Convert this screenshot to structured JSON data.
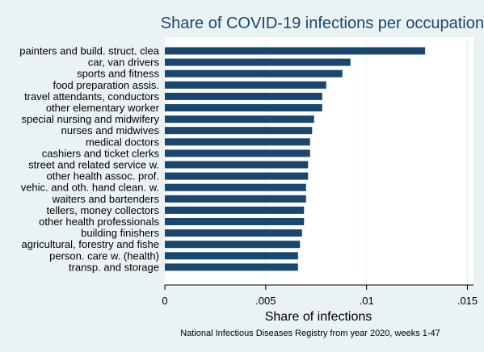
{
  "chart_data": {
    "type": "bar",
    "orientation": "horizontal",
    "title": "Share of COVID-19 infections per occupation",
    "xlabel": "Share of infections",
    "note": "National Infectious Diseases Registry from year 2020, weeks 1-47",
    "xlim": [
      0,
      0.0153
    ],
    "xticks": [
      0,
      0.005,
      0.01,
      0.015
    ],
    "xtick_labels": [
      "0",
      ".005",
      ".01",
      ".015"
    ],
    "grid": true,
    "bar_color": "#1a476f",
    "categories": [
      "painters and build. struct. clea",
      "car, van drivers",
      "sports and fitness",
      "food preparation assis.",
      "travel attendants, conductors",
      "other elementary worker",
      "special nursing and midwifery",
      "nurses and midwives",
      "medical doctors",
      "cashiers and ticket clerks",
      "street and related service w.",
      "other health assoc. prof.",
      "vehic. and oth. hand clean. w.",
      "waiters and bartenders",
      "tellers, money collectors",
      "other health professionals",
      "building finishers",
      "agricultural, forestry and fishe",
      "person. care w. (health)",
      "transp. and storage"
    ],
    "values": [
      0.0129,
      0.0092,
      0.0088,
      0.008,
      0.0078,
      0.0078,
      0.0074,
      0.0073,
      0.0072,
      0.0072,
      0.0071,
      0.0071,
      0.007,
      0.007,
      0.0069,
      0.0069,
      0.0068,
      0.0067,
      0.0066,
      0.0066
    ]
  }
}
